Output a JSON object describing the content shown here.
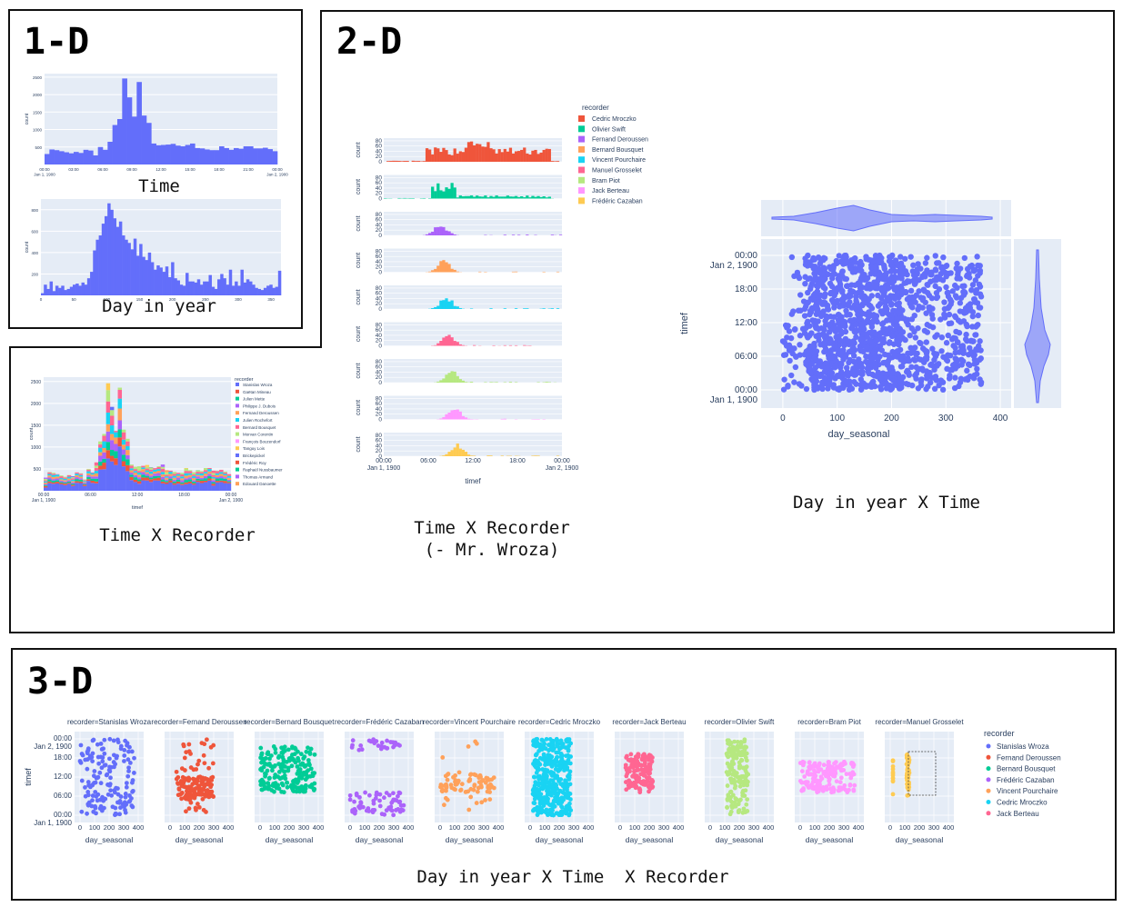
{
  "sections": {
    "one_d": "1-D",
    "two_d": "2-D",
    "three_d": "3-D"
  },
  "captions": {
    "time": "Time",
    "day_in_year": "Day in year",
    "time_x_recorder": "Time X Recorder",
    "time_x_recorder_excl_1": "Time X Recorder",
    "time_x_recorder_excl_2": "(- Mr. Wroza)",
    "day_x_time": "Day in year X Time",
    "day_x_time_x_recorder": "Day in year X Time  X Recorder"
  },
  "colors": {
    "plotly_blue": "#636efa",
    "plot_bg": "#e5ecf6",
    "palette": [
      "#636efa",
      "#ef553b",
      "#00cc96",
      "#ab63fa",
      "#ffa15a",
      "#19d3f3",
      "#ff6692",
      "#b6e880",
      "#ff97ff",
      "#fecb52"
    ]
  },
  "chart_data": [
    {
      "id": "time_hist",
      "type": "bar",
      "ylabel": "count",
      "x_ticks": [
        "00:00\nJan 1, 1900",
        "03:00",
        "06:00",
        "09:00",
        "12:00",
        "15:00",
        "18:00",
        "21:00",
        "00:00\nJan 2, 1900"
      ],
      "y_ticks": [
        500,
        1000,
        1500,
        2000,
        2500
      ],
      "ylim": [
        0,
        2600
      ],
      "values": [
        300,
        430,
        410,
        380,
        350,
        320,
        360,
        330,
        420,
        400,
        260,
        500,
        420,
        650,
        1130,
        1300,
        2460,
        1920,
        1370,
        2360,
        1400,
        1190,
        600,
        550,
        560,
        570,
        590,
        540,
        520,
        560,
        600,
        470,
        460,
        430,
        410,
        410,
        520,
        470,
        420,
        470,
        450,
        520,
        520,
        460,
        460,
        480,
        440,
        380
      ]
    },
    {
      "id": "day_hist",
      "type": "bar",
      "ylabel": "count",
      "x_ticks": [
        "0",
        "50",
        "100",
        "150",
        "200",
        "250",
        "300",
        "350"
      ],
      "y_ticks": [
        200,
        400,
        600,
        800
      ],
      "ylim": [
        0,
        900
      ],
      "xlim": [
        0,
        365
      ],
      "values": [
        20,
        100,
        60,
        130,
        40,
        90,
        70,
        90,
        50,
        60,
        80,
        100,
        110,
        90,
        120,
        100,
        160,
        220,
        420,
        520,
        560,
        670,
        740,
        860,
        800,
        720,
        640,
        690,
        560,
        520,
        490,
        430,
        530,
        370,
        480,
        360,
        330,
        400,
        310,
        240,
        280,
        260,
        220,
        270,
        170,
        310,
        160,
        140,
        100,
        90,
        210,
        130,
        130,
        120,
        150,
        100,
        130,
        130,
        190,
        80,
        60,
        150,
        200,
        160,
        100,
        240,
        90,
        130,
        90,
        240,
        120,
        150,
        130,
        100,
        70,
        60,
        50,
        70,
        90,
        100,
        70,
        80,
        230
      ]
    },
    {
      "id": "time_stacked",
      "type": "bar",
      "ylabel": "count",
      "xlabel": "timef",
      "legend_title": "recorder",
      "legend": [
        "Stanislas Wroza",
        "Gaëtan Mineau",
        "Julien Mette",
        "Philippe J. Dubois",
        "Fernand Deroussen",
        "Julien Rochefort",
        "Bernard Bousquet",
        "Morvan Corentin",
        "François Bouzendorf",
        "Tanguy Lois",
        "Brickepickel",
        "Frédéric Roy",
        "Raphaël Nussbaumer",
        "Thomas Armand",
        "Edouard Danoette"
      ],
      "x_ticks": [
        "00:00\nJan 1, 1900",
        "06:00",
        "12:00",
        "18:00",
        "00:00\nJan 2, 1900"
      ],
      "y_ticks": [
        500,
        1000,
        1500,
        2000,
        2500
      ],
      "ylim": [
        0,
        2600
      ],
      "values": [
        300,
        430,
        410,
        380,
        350,
        320,
        360,
        330,
        420,
        400,
        260,
        500,
        420,
        650,
        1130,
        1300,
        2460,
        1920,
        1370,
        2360,
        1400,
        1190,
        600,
        550,
        560,
        570,
        590,
        540,
        520,
        560,
        600,
        470,
        460,
        430,
        410,
        410,
        520,
        470,
        420,
        470,
        450,
        520,
        520,
        460,
        460,
        480,
        440,
        380
      ]
    },
    {
      "id": "recorder_facets",
      "type": "bar",
      "ylabel": "count",
      "xlabel": "timef",
      "legend_title": "recorder",
      "y_ticks": [
        0,
        20,
        40,
        60,
        80
      ],
      "ylim": [
        0,
        90
      ],
      "x_ticks": [
        "00:00\nJan 1, 1900",
        "06:00",
        "12:00",
        "18:00",
        "00:00\nJan 2, 1900"
      ],
      "series": [
        {
          "name": "Cedric Mroczko"
        },
        {
          "name": "Olivier Swift"
        },
        {
          "name": "Fernand Deroussen"
        },
        {
          "name": "Bernard Bousquet"
        },
        {
          "name": "Vincent Pourchaire"
        },
        {
          "name": "Manuel Grosselet"
        },
        {
          "name": "Bram Piot"
        },
        {
          "name": "Jack Berteau"
        },
        {
          "name": "Frédéric Cazaban"
        }
      ],
      "facet_sum_label": "recorder=…"
    },
    {
      "id": "day_time_scatter",
      "type": "scatter",
      "xlabel": "day_seasonal",
      "ylabel": "timef",
      "x_ticks": [
        "0",
        "100",
        "200",
        "300",
        "400"
      ],
      "xlim": [
        -40,
        420
      ],
      "y_ticks": [
        "00:00\nJan 1, 1900",
        "06:00",
        "12:00",
        "18:00",
        "00:00\nJan 2, 1900"
      ]
    },
    {
      "id": "scatter_facets",
      "type": "scatter",
      "xlabel": "day_seasonal",
      "ylabel": "timef",
      "x_ticks": [
        "0",
        "100",
        "200",
        "300",
        "400"
      ],
      "y_ticks": [
        "00:00\nJan 1, 1900",
        "06:00",
        "12:00",
        "18:00",
        "00:00\nJan 2, 1900"
      ],
      "facets": [
        {
          "title": "recorder=Stanislas Wroza",
          "color": "#636efa"
        },
        {
          "title": "recorder=Fernand Deroussen",
          "color": "#ef553b"
        },
        {
          "title": "recorder=Bernard Bousquet",
          "color": "#00cc96"
        },
        {
          "title": "recorder=Frédéric Cazaban",
          "color": "#ab63fa"
        },
        {
          "title": "recorder=Vincent Pourchaire",
          "color": "#ffa15a"
        },
        {
          "title": "recorder=Cedric Mroczko",
          "color": "#19d3f3"
        },
        {
          "title": "recorder=Jack Berteau",
          "color": "#ff6692"
        },
        {
          "title": "recorder=Olivier Swift",
          "color": "#b6e880"
        },
        {
          "title": "recorder=Bram Piot",
          "color": "#ff97ff"
        },
        {
          "title": "recorder=Manuel Grosselet",
          "color": "#fecb52"
        }
      ],
      "legend_title": "recorder",
      "legend": [
        "Stanislas Wroza",
        "Fernand Deroussen",
        "Bernard Bousquet",
        "Frédéric Cazaban",
        "Vincent Pourchaire",
        "Cedric Mroczko",
        "Jack Berteau"
      ]
    }
  ]
}
